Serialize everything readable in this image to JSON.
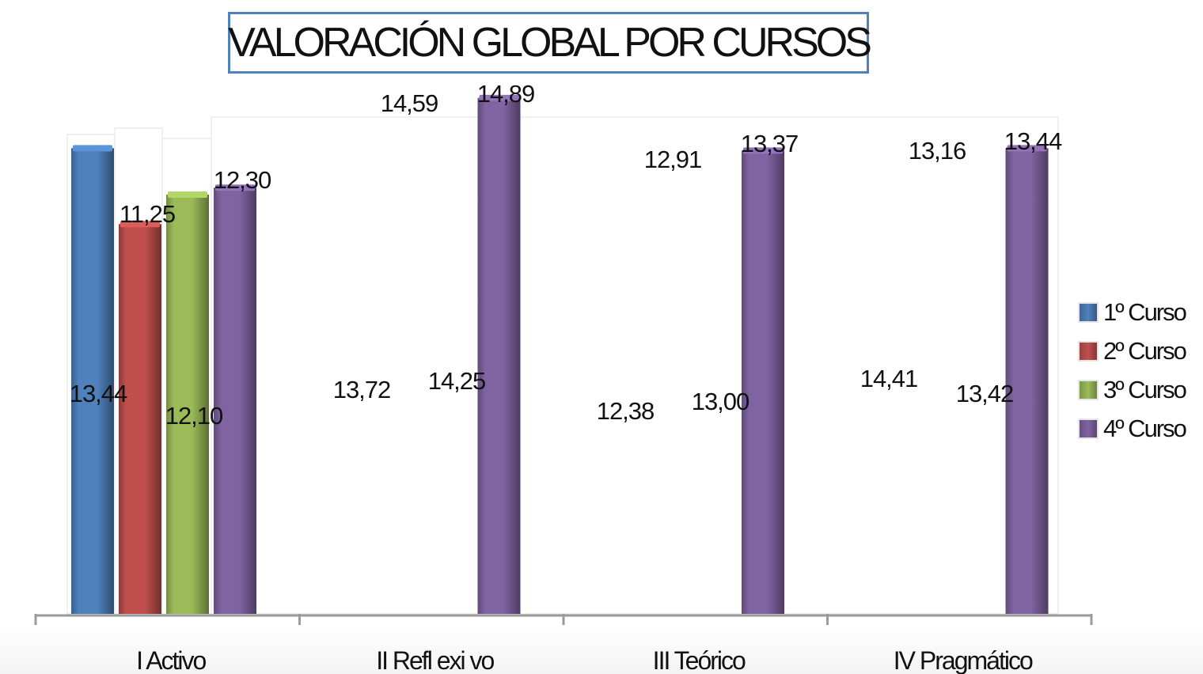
{
  "chart_data": {
    "type": "bar",
    "title": "VALORACIÓN GLOBAL POR CURSOS",
    "categories": [
      "I Activo",
      "II Refl exi vo",
      "III Teórico",
      "IV Pragmático"
    ],
    "series": [
      {
        "name": "1º Curso",
        "color": "#4f81bd",
        "values": [
          13.44,
          13.72,
          12.38,
          14.41
        ]
      },
      {
        "name": "2º Curso",
        "color": "#c0504d",
        "values": [
          11.25,
          14.59,
          12.91,
          13.16
        ]
      },
      {
        "name": "3º Curso",
        "color": "#9bbb59",
        "values": [
          12.1,
          14.25,
          13.0,
          13.42
        ]
      },
      {
        "name": "4º Curso",
        "color": "#8064a2",
        "values": [
          12.3,
          14.89,
          13.37,
          13.44
        ]
      }
    ],
    "data_labels": [
      [
        "13,44",
        "11,25",
        "12,10",
        "12,30"
      ],
      [
        "13,72",
        "14,59",
        "14,25",
        "14,89"
      ],
      [
        "12,38",
        "12,91",
        "13,00",
        "13,37"
      ],
      [
        "14,41",
        "13,16",
        "13,42",
        "13,44"
      ]
    ],
    "bars_shown": [
      [
        true,
        true,
        true,
        true
      ],
      [
        false,
        false,
        false,
        true
      ],
      [
        false,
        false,
        false,
        true
      ],
      [
        false,
        false,
        false,
        true
      ]
    ],
    "ylim": [
      0,
      15
    ],
    "xlabel": "",
    "ylabel": "",
    "grid": false,
    "legend_position": "right"
  }
}
